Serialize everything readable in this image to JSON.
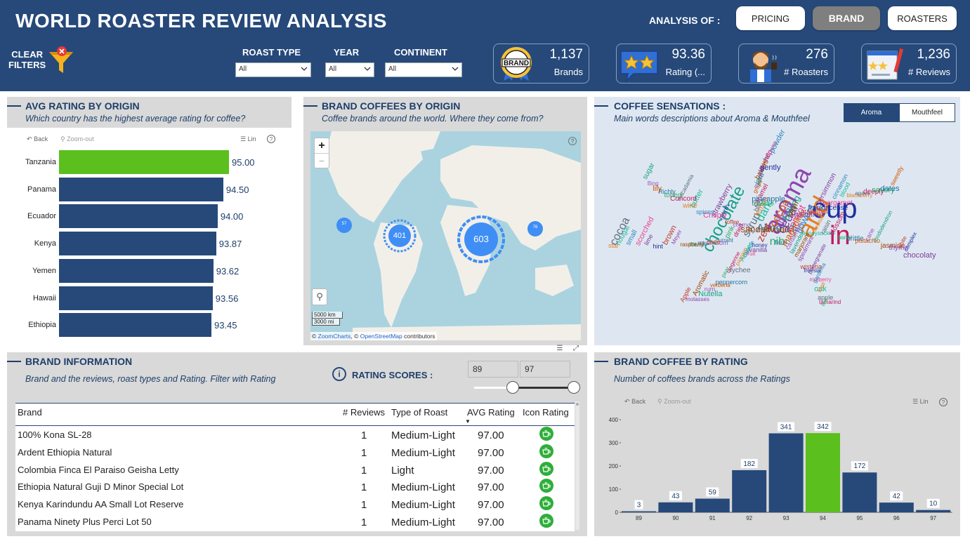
{
  "header": {
    "title": "WORLD ROASTER REVIEW ANALYSIS",
    "analysis_label": "ANALYSIS OF :",
    "nav": [
      {
        "label": "PRICING",
        "active": false
      },
      {
        "label": "BRAND",
        "active": true
      },
      {
        "label": "ROASTERS",
        "active": false
      }
    ],
    "clear_filters": "CLEAR\nFILTERS",
    "filters": [
      {
        "label": "ROAST TYPE",
        "value": "All"
      },
      {
        "label": "YEAR",
        "value": "All"
      },
      {
        "label": "CONTINENT",
        "value": "All"
      }
    ],
    "kpis": [
      {
        "value": "1,137",
        "label": "Brands",
        "icon": "brand-badge-icon"
      },
      {
        "value": "93.36",
        "label": "Rating (...",
        "icon": "star-rating-icon"
      },
      {
        "value": "276",
        "label": "# Roasters",
        "icon": "roaster-person-icon"
      },
      {
        "value": "1,236",
        "label": "# Reviews",
        "icon": "review-form-icon"
      }
    ]
  },
  "avg_rating": {
    "title": "AVG RATING BY ORIGIN",
    "subtitle": "Which country has the highest average rating for coffee?",
    "back": "Back",
    "zoom_out": "Zoom-out",
    "lin": "Lin",
    "highlight_color": "#5bbf1e",
    "bar_color": "#26497a",
    "chart_data": {
      "type": "bar",
      "orientation": "horizontal",
      "categories": [
        "Tanzania",
        "Panama",
        "Ecuador",
        "Kenya",
        "Yemen",
        "Hawaii",
        "Ethiopia"
      ],
      "values": [
        95.0,
        94.5,
        94.0,
        93.87,
        93.62,
        93.56,
        93.45
      ],
      "labels": [
        "95.00",
        "94.50",
        "94.00",
        "93.87",
        "93.62",
        "93.56",
        "93.45"
      ],
      "highlight": "Tanzania"
    }
  },
  "map": {
    "title": "BRAND COFFEES BY ORIGIN",
    "subtitle": "Coffee brands around the world. Where they come from?",
    "zoom_in": "+",
    "zoom_minus": "−",
    "scale_km": "5000 km",
    "scale_mi": "3000 mi",
    "attribution_prefix": "© ",
    "attribution_zc": "ZoomCharts",
    "attribution_mid": ", © ",
    "attribution_osm": "OpenStreetMap",
    "attribution_suffix": " contributors",
    "clusters": [
      "57",
      "401",
      "603",
      "76"
    ]
  },
  "sensations": {
    "title": "COFFEE SENSATIONS :",
    "subtitle": "Main words descriptions about Aroma & Mouthfeel",
    "tabs": [
      {
        "label": "Aroma",
        "active": true
      },
      {
        "label": "Mouthfeel",
        "active": false
      }
    ],
    "words": [
      "cup",
      "in",
      "aroma",
      "and",
      "chocolate",
      "Almond",
      "cocoa",
      "cedar",
      "nib",
      "zest",
      "syrup",
      "sandalwood",
      "dark",
      "fresh",
      "Apricot",
      "floral",
      "honey",
      "dried",
      "cherry",
      "lemon",
      "baking",
      "flowers",
      "magnolia",
      "vanilla",
      "pink",
      "toffee",
      "black",
      "plum",
      "honeysuckle",
      "cardamom",
      "fruit",
      "currant",
      "myrrh",
      "caramel",
      "hazelnut",
      "narcissus",
      "lavender",
      "orange",
      "rose",
      "strawberry",
      "tobacco",
      "grapefruit",
      "raisin",
      "marjoram",
      "Amber",
      "mushroom",
      "Crisply",
      "pineapple",
      "frankincense",
      "blossom",
      "spearmint",
      "passion",
      "musk",
      "spices",
      "grape",
      "persimmon",
      "barrel",
      "wisteria",
      "lychee",
      "raspberry",
      "butter",
      "maple",
      "bergamot",
      "brittle",
      "freesia",
      "tangerine",
      "Meyer",
      "wine",
      "jam",
      "cinnamon",
      "pistachio",
      "pomegranate",
      "pear",
      "brown",
      "macadamia",
      "bakers",
      "blood",
      "cane",
      "mulberry",
      "peppercorn",
      "hint",
      "Concord",
      "tart",
      "blackberry",
      "rhododendron",
      "gardenia",
      "verbena",
      "lime",
      "toned",
      "sweet",
      "agave",
      "jasmine",
      "oak",
      "rum",
      "scorched",
      "Richly",
      "gently",
      "deeply",
      "thyme",
      "kiwi",
      "Nutella",
      "small",
      "lily",
      "hop",
      "savory",
      "white",
      "apple",
      "Aromatic",
      "nougat",
      "Bing",
      "flower",
      "dates",
      "complex",
      "tamarind",
      "molasses",
      "star",
      "sugar",
      "powder",
      "sweetly",
      "chocolaty",
      "like",
      "Apple",
      "cocoa"
    ]
  },
  "brand_info": {
    "title": "BRAND INFORMATION",
    "subtitle": "Brand and the reviews, roast types and Rating. Filter with Rating",
    "rating_scores_label": "RATING SCORES :",
    "rating_min": "89",
    "rating_max": "97",
    "slider_min_fraction": 0.0,
    "slider_max_fraction": 1.0,
    "columns": [
      "Brand",
      "# Reviews",
      "Type of Roast",
      "AVG Rating",
      "Icon Rating"
    ],
    "rows": [
      {
        "brand": "100% Kona SL-28",
        "reviews": "1",
        "roast": "Medium-Light",
        "rating": "97.00"
      },
      {
        "brand": "Ardent Ethiopia Natural",
        "reviews": "1",
        "roast": "Medium-Light",
        "rating": "97.00"
      },
      {
        "brand": "Colombia Finca El Paraiso Geisha Letty",
        "reviews": "1",
        "roast": "Light",
        "rating": "97.00"
      },
      {
        "brand": "Ethiopia Natural Guji D Minor Special Lot",
        "reviews": "1",
        "roast": "Medium-Light",
        "rating": "97.00"
      },
      {
        "brand": "Kenya Karindundu AA Small Lot Reserve",
        "reviews": "1",
        "roast": "Medium-Light",
        "rating": "97.00"
      },
      {
        "brand": "Panama Ninety Plus Perci Lot 50",
        "reviews": "1",
        "roast": "Medium-Light",
        "rating": "97.00"
      }
    ]
  },
  "by_rating": {
    "title": "BRAND COFFEE BY RATING",
    "subtitle": "Number of coffees brands across the Ratings",
    "back": "Back",
    "zoom_out": "Zoom-out",
    "lin": "Lin",
    "bar_color": "#26497a",
    "highlight_color": "#5bbf1e",
    "chart_data": {
      "type": "bar",
      "categories": [
        "89",
        "90",
        "91",
        "92",
        "93",
        "94",
        "95",
        "96",
        "97"
      ],
      "values": [
        3,
        43,
        59,
        182,
        341,
        342,
        172,
        42,
        10
      ],
      "highlight": "94",
      "ylim": [
        0,
        400
      ],
      "yticks": [
        0,
        100,
        200,
        300,
        400
      ]
    }
  }
}
